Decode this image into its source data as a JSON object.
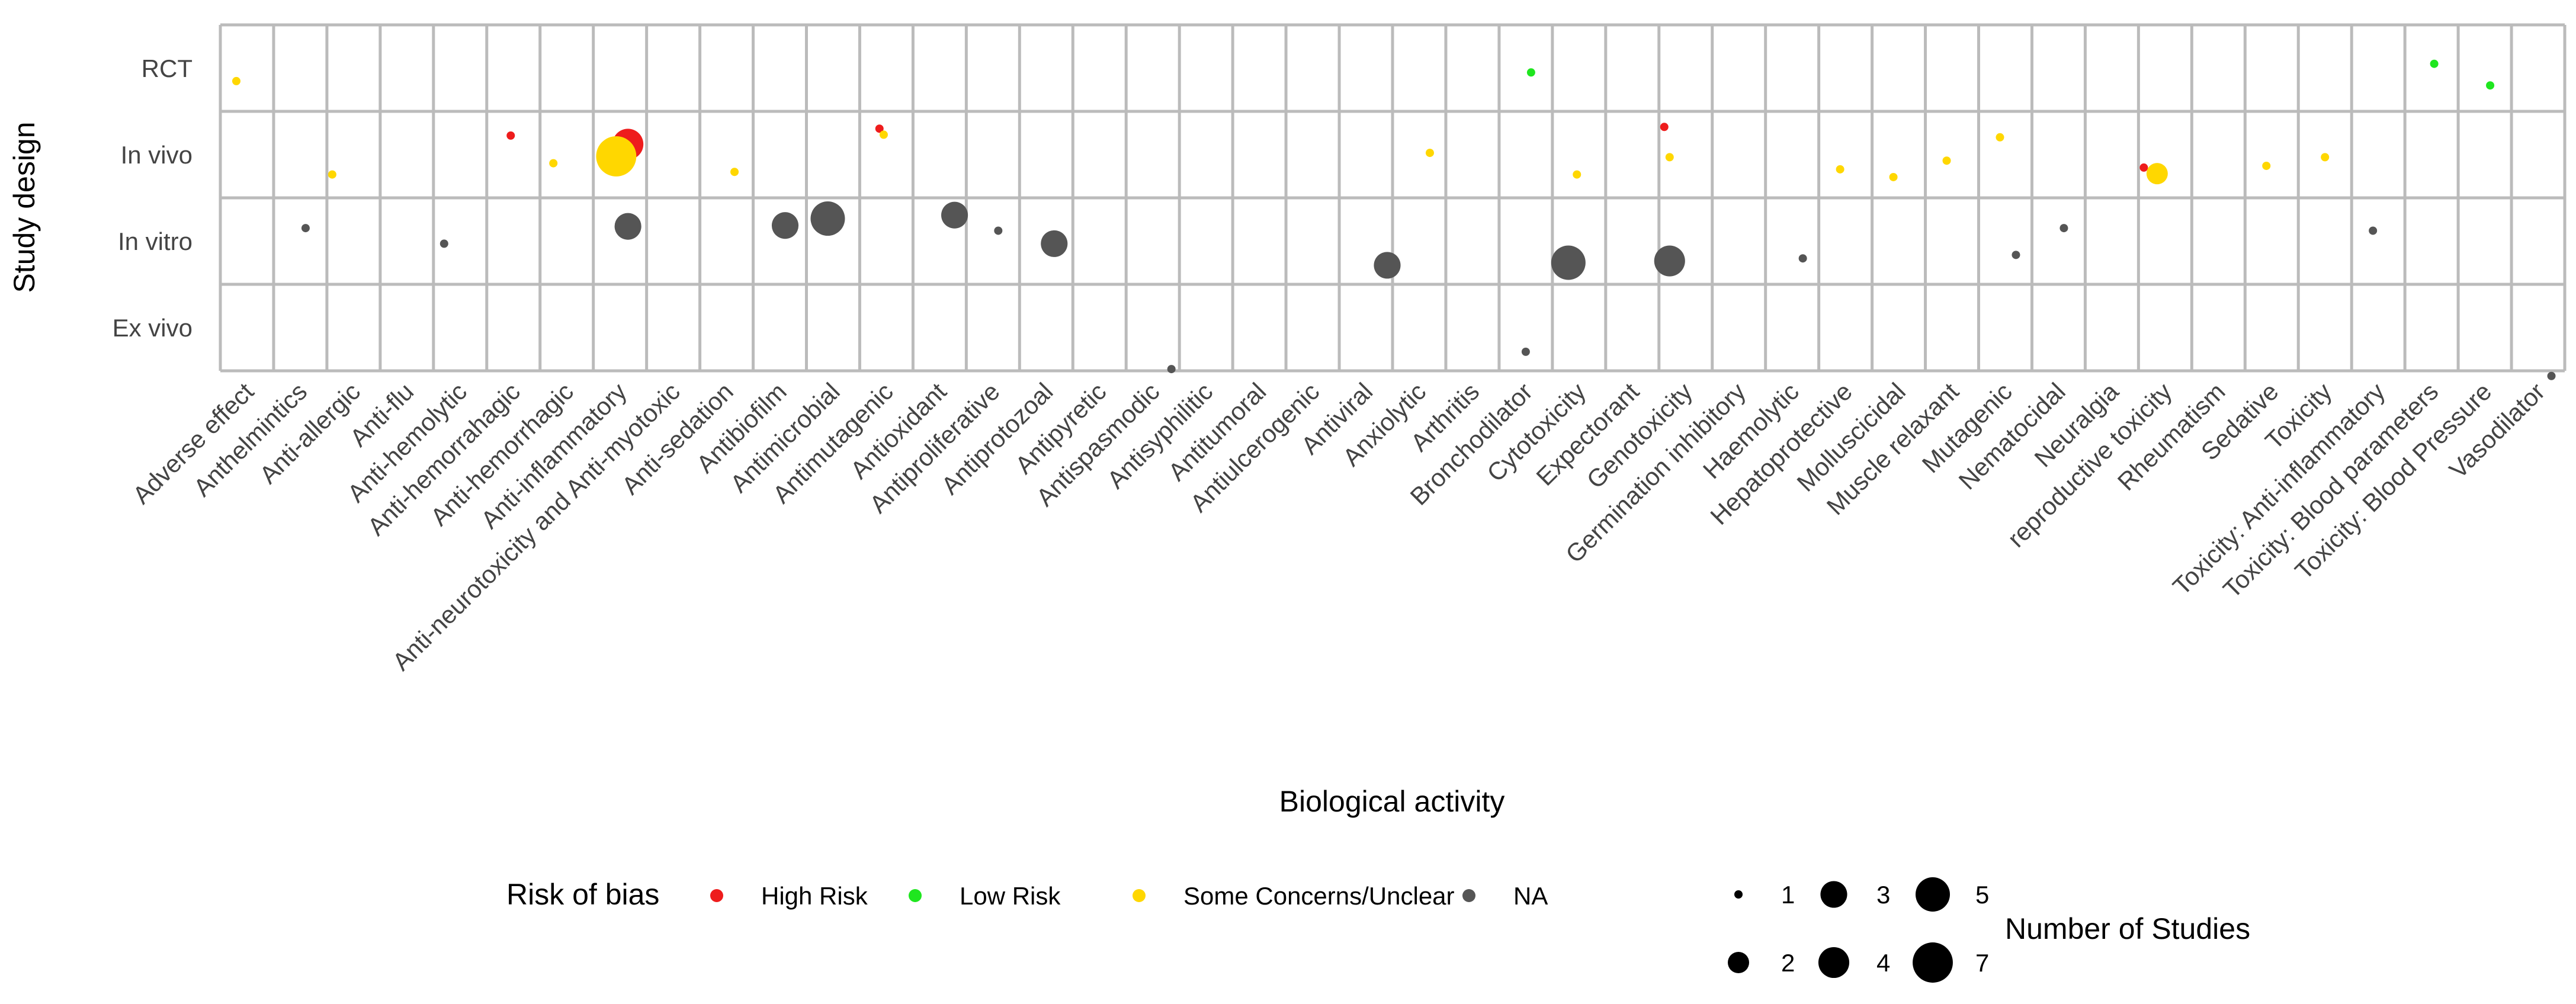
{
  "chart_data": {
    "type": "scatter",
    "subtype": "bubble",
    "xlabel": "Biological activity",
    "ylabel": "Study design",
    "categories_x": [
      "Adverse effect",
      "Anthelmintics",
      "Anti-allergic",
      "Anti-flu",
      "Anti-hemolytic",
      "Anti-hemorrahagic",
      "Anti-hemorrhagic",
      "Anti-inflammatory",
      "Anti-neurotoxicity and Anti-myotoxic",
      "Anti-sedation",
      "Antibiofilm",
      "Antimicrobial",
      "Antimutagenic",
      "Antioxidant",
      "Antiproliferative",
      "Antiprotozoal",
      "Antipyretic",
      "Antispasmodic",
      "Antisyphilitic",
      "Antitumoral",
      "Antiulcerogenic",
      "Antiviral",
      "Anxiolytic",
      "Arthritis",
      "Bronchodilator",
      "Cytotoxicity",
      "Expectorant",
      "Genotoxicity",
      "Germination inhibitory",
      "Haemolytic",
      "Hepatoprotective",
      "Molluscicidal",
      "Muscle relaxant",
      "Mutagenic",
      "Nematocidal",
      "Neuralgia",
      "reproductive toxicity",
      "Rheumatism",
      "Sedative",
      "Toxicity",
      "Toxicity: Anti-inflammatory",
      "Toxicity: Blood parameters",
      "Toxicity: Blood Pressure",
      "Vasodilator"
    ],
    "categories_y": [
      "RCT",
      "In vivo",
      "In vitro",
      "Ex vivo"
    ],
    "points": [
      {
        "x": "Adverse effect",
        "y": "RCT",
        "dx": -0.2,
        "dy": 0.15,
        "size": 1,
        "risk": "Some Concerns/Unclear"
      },
      {
        "x": "Bronchodilator",
        "y": "RCT",
        "dx": 0.1,
        "dy": 0.05,
        "size": 1,
        "risk": "Low Risk"
      },
      {
        "x": "Toxicity: Blood parameters",
        "y": "RCT",
        "dx": 0.05,
        "dy": -0.05,
        "size": 1,
        "risk": "Low Risk"
      },
      {
        "x": "Toxicity: Blood Pressure",
        "y": "RCT",
        "dx": 0.1,
        "dy": 0.2,
        "size": 1,
        "risk": "Low Risk"
      },
      {
        "x": "Anti-allergic",
        "y": "In vivo",
        "dx": -0.4,
        "dy": 0.23,
        "size": 1,
        "risk": "Some Concerns/Unclear"
      },
      {
        "x": "Anti-hemorrahagic",
        "y": "In vivo",
        "dx": -0.05,
        "dy": -0.22,
        "size": 1,
        "risk": "High Risk"
      },
      {
        "x": "Anti-hemorrhagic",
        "y": "In vivo",
        "dx": -0.25,
        "dy": 0.1,
        "size": 1,
        "risk": "Some Concerns/Unclear"
      },
      {
        "x": "Anti-inflammatory",
        "y": "In vivo",
        "dx": 0.15,
        "dy": -0.12,
        "size": 4,
        "risk": "High Risk"
      },
      {
        "x": "Anti-inflammatory",
        "y": "In vivo",
        "dx": -0.07,
        "dy": 0.02,
        "size": 7,
        "risk": "Some Concerns/Unclear"
      },
      {
        "x": "Anti-sedation",
        "y": "In vivo",
        "dx": 0.15,
        "dy": 0.2,
        "size": 1,
        "risk": "Some Concerns/Unclear"
      },
      {
        "x": "Antimutagenic",
        "y": "In vivo",
        "dx": -0.13,
        "dy": -0.3,
        "size": 1,
        "risk": "High Risk"
      },
      {
        "x": "Antimutagenic",
        "y": "In vivo",
        "dx": -0.05,
        "dy": -0.23,
        "size": 1,
        "risk": "Some Concerns/Unclear"
      },
      {
        "x": "Anxiolytic",
        "y": "In vivo",
        "dx": 0.2,
        "dy": -0.02,
        "size": 1,
        "risk": "Some Concerns/Unclear"
      },
      {
        "x": "Cytotoxicity",
        "y": "In vivo",
        "dx": -0.04,
        "dy": 0.23,
        "size": 1,
        "risk": "Some Concerns/Unclear"
      },
      {
        "x": "Genotoxicity",
        "y": "In vivo",
        "dx": -0.4,
        "dy": -0.32,
        "size": 1,
        "risk": "High Risk"
      },
      {
        "x": "Genotoxicity",
        "y": "In vivo",
        "dx": -0.3,
        "dy": 0.03,
        "size": 1,
        "risk": "Some Concerns/Unclear"
      },
      {
        "x": "Hepatoprotective",
        "y": "In vivo",
        "dx": -0.1,
        "dy": 0.17,
        "size": 1,
        "risk": "Some Concerns/Unclear"
      },
      {
        "x": "Molluscicidal",
        "y": "In vivo",
        "dx": -0.1,
        "dy": 0.26,
        "size": 1,
        "risk": "Some Concerns/Unclear"
      },
      {
        "x": "Muscle relaxant",
        "y": "In vivo",
        "dx": -0.1,
        "dy": 0.07,
        "size": 1,
        "risk": "Some Concerns/Unclear"
      },
      {
        "x": "Mutagenic",
        "y": "In vivo",
        "dx": -0.1,
        "dy": -0.2,
        "size": 1,
        "risk": "Some Concerns/Unclear"
      },
      {
        "x": "reproductive toxicity",
        "y": "In vivo",
        "dx": -0.4,
        "dy": 0.15,
        "size": 1,
        "risk": "High Risk"
      },
      {
        "x": "reproductive toxicity",
        "y": "In vivo",
        "dx": -0.15,
        "dy": 0.22,
        "size": 2,
        "risk": "Some Concerns/Unclear"
      },
      {
        "x": "Sedative",
        "y": "In vivo",
        "dx": -0.1,
        "dy": 0.13,
        "size": 1,
        "risk": "Some Concerns/Unclear"
      },
      {
        "x": "Toxicity",
        "y": "In vivo",
        "dx": 0.0,
        "dy": 0.03,
        "size": 1,
        "risk": "Some Concerns/Unclear"
      },
      {
        "x": "Anthelmintics",
        "y": "In vitro",
        "dx": 0.1,
        "dy": -0.15,
        "size": 1,
        "risk": "NA"
      },
      {
        "x": "Anti-hemolytic",
        "y": "In vitro",
        "dx": -0.3,
        "dy": 0.03,
        "size": 1,
        "risk": "NA"
      },
      {
        "x": "Anti-inflammatory",
        "y": "In vitro",
        "dx": 0.15,
        "dy": -0.17,
        "size": 3,
        "risk": "NA"
      },
      {
        "x": "Antibiofilm",
        "y": "In vitro",
        "dx": 0.1,
        "dy": -0.18,
        "size": 3,
        "risk": "NA"
      },
      {
        "x": "Antimicrobial",
        "y": "In vitro",
        "dx": -0.1,
        "dy": -0.26,
        "size": 5,
        "risk": "NA"
      },
      {
        "x": "Antioxidant",
        "y": "In vitro",
        "dx": 0.28,
        "dy": -0.3,
        "size": 3,
        "risk": "NA"
      },
      {
        "x": "Antiproliferative",
        "y": "In vitro",
        "dx": 0.1,
        "dy": -0.12,
        "size": 1,
        "risk": "NA"
      },
      {
        "x": "Antiprotozoal",
        "y": "In vitro",
        "dx": 0.15,
        "dy": 0.03,
        "size": 3,
        "risk": "NA"
      },
      {
        "x": "Antiviral",
        "y": "In vitro",
        "dx": 0.4,
        "dy": 0.28,
        "size": 3,
        "risk": "NA"
      },
      {
        "x": "Cytotoxicity",
        "y": "In vitro",
        "dx": -0.2,
        "dy": 0.25,
        "size": 5,
        "risk": "NA"
      },
      {
        "x": "Genotoxicity",
        "y": "In vitro",
        "dx": -0.3,
        "dy": 0.23,
        "size": 4,
        "risk": "NA"
      },
      {
        "x": "Haemolytic",
        "y": "In vitro",
        "dx": 0.2,
        "dy": 0.2,
        "size": 1,
        "risk": "NA"
      },
      {
        "x": "Mutagenic",
        "y": "In vitro",
        "dx": 0.2,
        "dy": 0.16,
        "size": 1,
        "risk": "NA"
      },
      {
        "x": "Nematocidal",
        "y": "In vitro",
        "dx": 0.1,
        "dy": -0.15,
        "size": 1,
        "risk": "NA"
      },
      {
        "x": "Toxicity: Anti-inflammatory",
        "y": "In vitro",
        "dx": -0.1,
        "dy": -0.12,
        "size": 1,
        "risk": "NA"
      },
      {
        "x": "Antispasmodic",
        "y": "Ex vivo",
        "dx": 0.35,
        "dy": 0.48,
        "size": 1,
        "risk": "NA"
      },
      {
        "x": "Bronchodilator",
        "y": "Ex vivo",
        "dx": 0.0,
        "dy": 0.28,
        "size": 1,
        "risk": "NA"
      },
      {
        "x": "Vasodilator",
        "y": "Ex vivo",
        "dx": 0.25,
        "dy": 0.56,
        "size": 1,
        "risk": "NA"
      }
    ],
    "legend": {
      "risk_title": "Risk of bias",
      "risk_items": [
        {
          "label": "High Risk",
          "color": "#ee1c1c"
        },
        {
          "label": "Low Risk",
          "color": "#1fe61f"
        },
        {
          "label": "Some Concerns/Unclear",
          "color": "#ffd700"
        },
        {
          "label": "NA",
          "color": "#555555"
        }
      ],
      "size_title": "Number of Studies",
      "size_items": [
        1,
        3,
        5,
        2,
        4,
        7
      ]
    },
    "colors": {
      "panel_background": "#ffffff",
      "grid": "#bbbbbb",
      "tick_text": "#444444"
    }
  }
}
